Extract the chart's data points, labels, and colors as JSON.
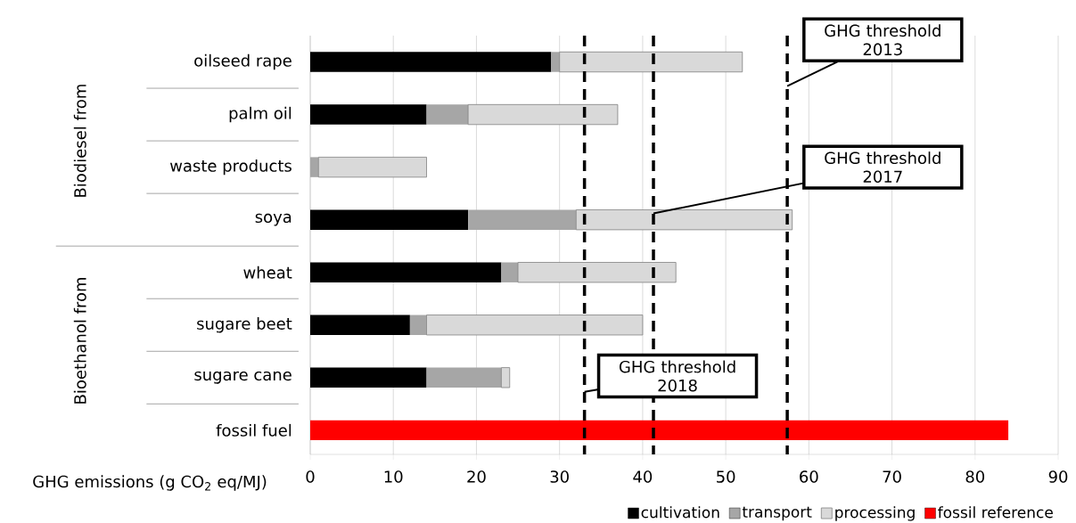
{
  "chart_data": {
    "type": "bar",
    "orientation": "horizontal",
    "stacked": true,
    "categories": [
      "oilseed rape",
      "palm oil",
      "waste products",
      "soya",
      "wheat",
      "sugare beet",
      "sugare cane",
      "fossil fuel"
    ],
    "series": [
      {
        "name": "cultivation",
        "color": "#000000",
        "values": [
          29,
          14,
          null,
          19,
          23,
          12,
          14,
          null
        ]
      },
      {
        "name": "transport",
        "color": "#a6a6a6",
        "values": [
          1,
          5,
          1,
          13,
          2,
          2,
          9,
          null
        ]
      },
      {
        "name": "processing",
        "color": "#d9d9d9",
        "values": [
          22,
          18,
          13,
          26,
          19,
          26,
          1,
          null
        ]
      },
      {
        "name": "fossil reference",
        "color": "#ff0000",
        "values": [
          null,
          null,
          null,
          null,
          null,
          null,
          null,
          84
        ]
      }
    ],
    "xlabel": "GHG emissions (g CO$_{2}$ eq/MJ)",
    "xlim": [
      0,
      90
    ],
    "xticks": [
      0,
      10,
      20,
      30,
      40,
      50,
      60,
      70,
      80,
      90
    ],
    "grid": "x",
    "legend": "bottom right",
    "ref_lines": [
      {
        "axis": "x",
        "value": 33,
        "label": "GHG threshold 2018",
        "line_style": "dashed",
        "color": "#000000"
      },
      {
        "axis": "x",
        "value": 41.3,
        "label": "GHG threshold 2017",
        "line_style": "dashed",
        "color": "#000000"
      },
      {
        "axis": "x",
        "value": 57.4,
        "label": "GHG threshold 2013",
        "line_style": "dashed",
        "color": "#000000"
      }
    ],
    "annotations": [
      "Biodiesel from",
      "Bioethanol from"
    ]
  }
}
